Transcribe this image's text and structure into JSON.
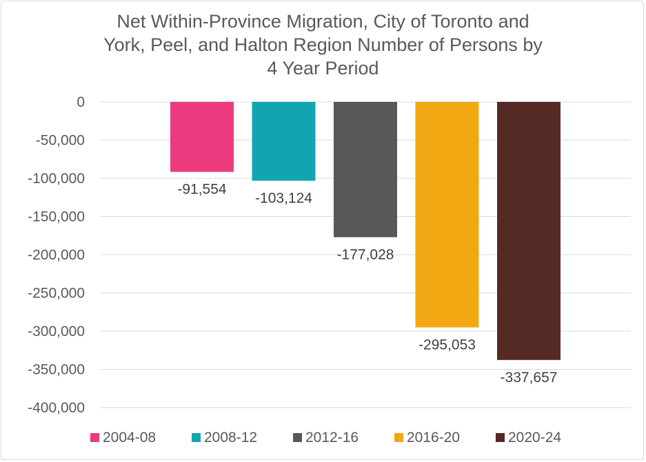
{
  "title_lines": [
    "Net Within-Province Migration, City of Toronto and",
    "York, Peel, and Halton Region Number of Persons by",
    "4 Year Period"
  ],
  "chart_data": {
    "type": "bar",
    "title": "Net Within-Province Migration, City of Toronto and York, Peel, and Halton Region Number of Persons by 4 Year Period",
    "xlabel": "",
    "ylabel": "",
    "ylim": [
      -400000,
      0
    ],
    "yticks": [
      0,
      -50000,
      -100000,
      -150000,
      -200000,
      -250000,
      -300000,
      -350000,
      -400000
    ],
    "ytick_labels": [
      "0",
      "-50,000",
      "-100,000",
      "-150,000",
      "-200,000",
      "-250,000",
      "-300,000",
      "-350,000",
      "-400,000"
    ],
    "grid": true,
    "legend_position": "bottom",
    "series": [
      {
        "name": "2004-08",
        "value": -91554,
        "label": "-91,554",
        "color": "#ec3a7e"
      },
      {
        "name": "2008-12",
        "value": -103124,
        "label": "-103,124",
        "color": "#12a5b1"
      },
      {
        "name": "2012-16",
        "value": -177028,
        "label": "-177,028",
        "color": "#58585a"
      },
      {
        "name": "2016-20",
        "value": -295053,
        "label": "-295,053",
        "color": "#f2a812"
      },
      {
        "name": "2020-24",
        "value": -337657,
        "label": "-337,657",
        "color": "#552a24"
      }
    ]
  }
}
